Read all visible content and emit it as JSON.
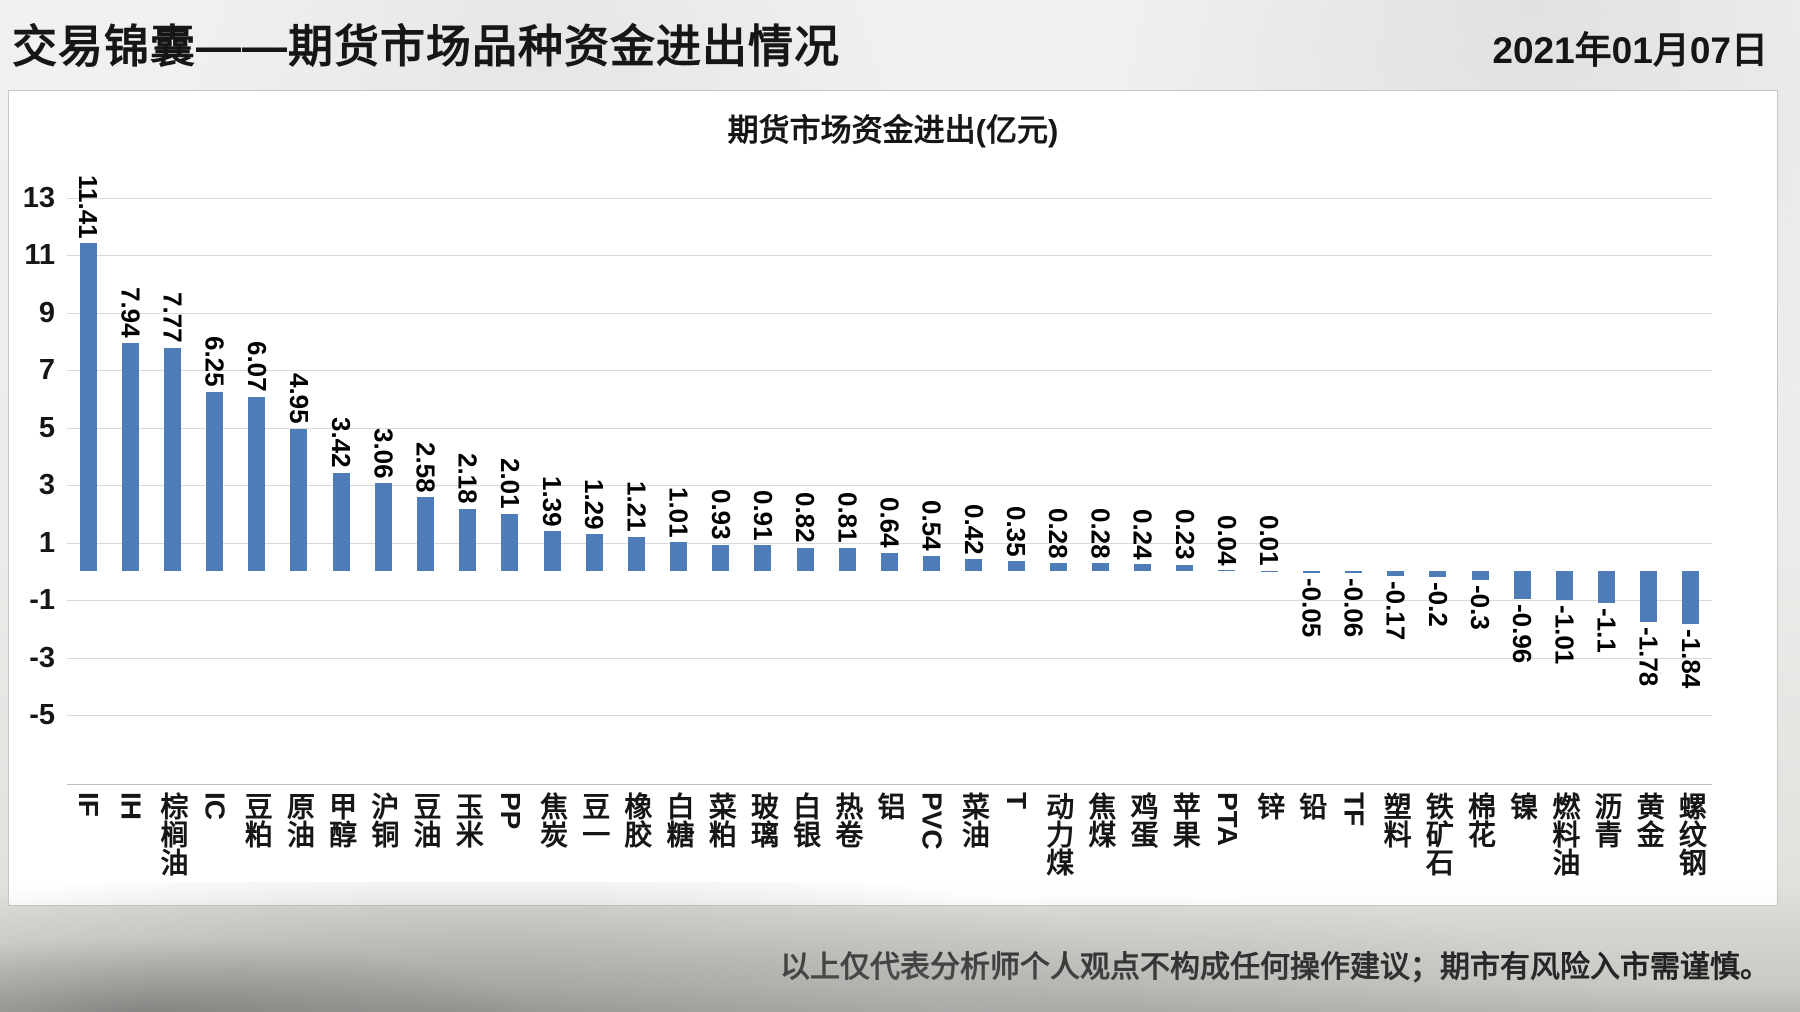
{
  "header": {
    "title": "交易锦囊——期货市场品种资金进出情况",
    "date": "2021年01月07日"
  },
  "chart_data": {
    "type": "bar",
    "title": "期货市场资金进出(亿元)",
    "categories": [
      "IF",
      "IH",
      "棕榈油",
      "IC",
      "豆粕",
      "原油",
      "甲醇",
      "沪铜",
      "豆油",
      "玉米",
      "PP",
      "焦炭",
      "豆一",
      "橡胶",
      "白糖",
      "菜粕",
      "玻璃",
      "白银",
      "热卷",
      "铝",
      "PVC",
      "菜油",
      "T",
      "动力煤",
      "焦煤",
      "鸡蛋",
      "苹果",
      "PTA",
      "锌",
      "铅",
      "TF",
      "塑料",
      "铁矿石",
      "棉花",
      "镍",
      "燃料油",
      "沥青",
      "黄金",
      "螺纹钢"
    ],
    "values": [
      11.41,
      7.94,
      7.77,
      6.25,
      6.07,
      4.95,
      3.42,
      3.06,
      2.58,
      2.18,
      2.01,
      1.39,
      1.29,
      1.21,
      1.01,
      0.93,
      0.91,
      0.82,
      0.81,
      0.64,
      0.54,
      0.42,
      0.35,
      0.28,
      0.28,
      0.24,
      0.23,
      0.04,
      0.01,
      -0.05,
      -0.06,
      -0.17,
      -0.2,
      -0.3,
      -0.96,
      -1.01,
      -1.1,
      -1.78,
      -1.84
    ],
    "xlabel": "",
    "ylabel": "",
    "yticks": [
      13,
      11,
      9,
      7,
      5,
      3,
      1,
      -1,
      -3,
      -5
    ],
    "ylim": [
      -7.4,
      14.1
    ],
    "grid": true,
    "legend_position": "none",
    "bar_color": "#4e7cb6",
    "grid_color": "#d9d9d9",
    "value_labels_rotated": true,
    "category_labels_vertical": true
  },
  "footer": {
    "disclaimer": "以上仅代表分析师个人观点不构成任何操作建议；期市有风险入市需谨慎。"
  }
}
